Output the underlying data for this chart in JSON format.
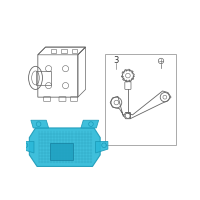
{
  "bg_color": "#ffffff",
  "border_color": "#aaaaaa",
  "highlight_color": "#2ab8d8",
  "line_color": "#666666",
  "text_color": "#333333",
  "label_3": "3",
  "fig_bg": "#f5f5f5"
}
